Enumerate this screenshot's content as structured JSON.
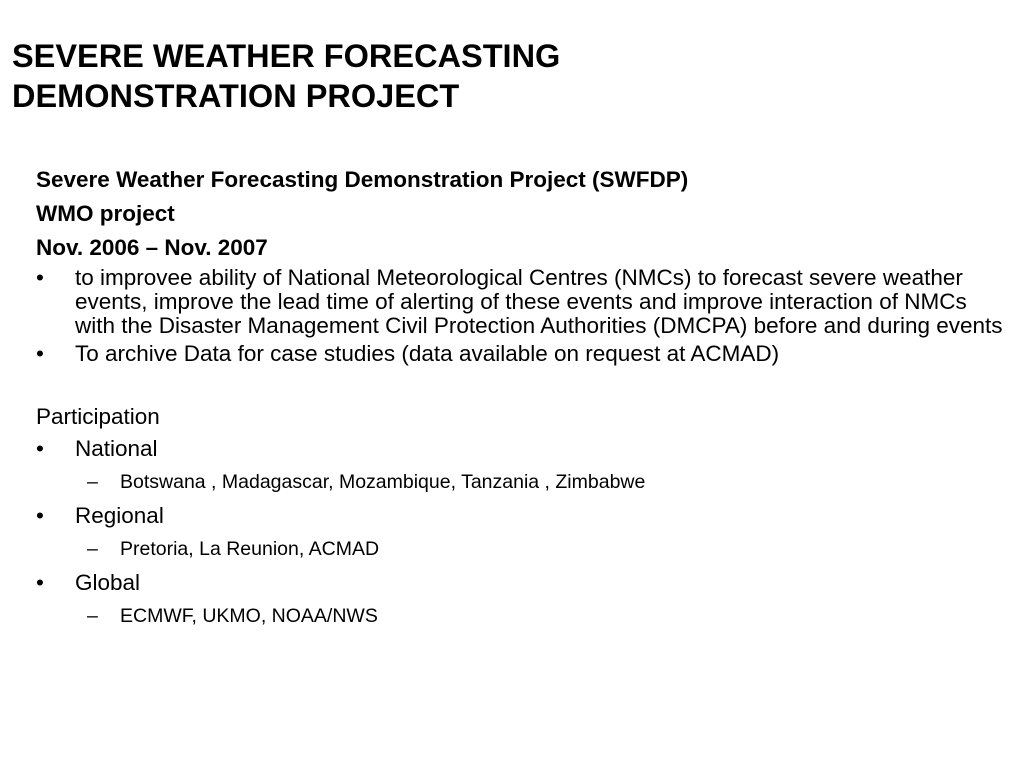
{
  "slide": {
    "title_line1": "SEVERE WEATHER FORECASTING",
    "title_line2": "DEMONSTRATION PROJECT",
    "bullet_mark": "•",
    "sub_mark": "–",
    "heading_lines": [
      "Severe Weather Forecasting Demonstration Project (SWFDP)",
      "WMO project",
      "Nov. 2006 – Nov. 2007"
    ],
    "bullets": [
      "to improvee ability of National Meteorological Centres (NMCs) to forecast severe weather events, improve the lead time of alerting of these events and improve interaction of NMCs with the Disaster Management Civil Protection Authorities (DMCPA) before and during events",
      "To archive Data for case studies (data available on request at ACMAD)"
    ],
    "participation": {
      "label": "Participation",
      "groups": [
        {
          "name": "National",
          "members": "Botswana , Madagascar, Mozambique, Tanzania , Zimbabwe"
        },
        {
          "name": "Regional",
          "members": "Pretoria, La Reunion, ACMAD"
        },
        {
          "name": "Global",
          "members": "ECMWF, UKMO, NOAA/NWS"
        }
      ]
    }
  }
}
